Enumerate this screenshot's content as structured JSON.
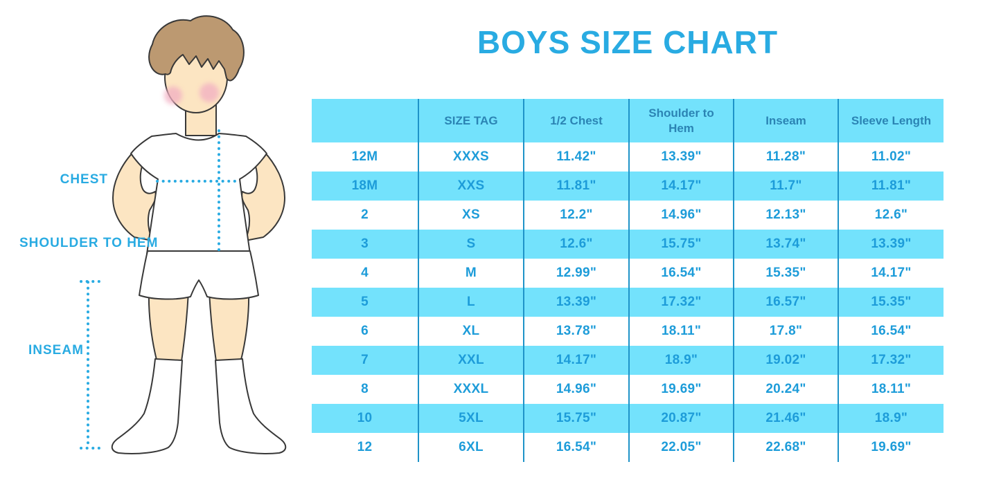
{
  "title": "BOYS SIZE CHART",
  "figure": {
    "labels": {
      "chest": "CHEST",
      "shoulder_to_hem": "SHOULDER TO HEM",
      "inseam": "INSEAM"
    }
  },
  "table": {
    "columns": [
      "",
      "SIZE TAG",
      "1/2 Chest",
      "Shoulder to Hem",
      "Inseam",
      "Sleeve Length"
    ],
    "rows": [
      [
        "12M",
        "XXXS",
        "11.42\"",
        "13.39\"",
        "11.28\"",
        "11.02\""
      ],
      [
        "18M",
        "XXS",
        "11.81\"",
        "14.17\"",
        "11.7\"",
        "11.81\""
      ],
      [
        "2",
        "XS",
        "12.2\"",
        "14.96\"",
        "12.13\"",
        "12.6\""
      ],
      [
        "3",
        "S",
        "12.6\"",
        "15.75\"",
        "13.74\"",
        "13.39\""
      ],
      [
        "4",
        "M",
        "12.99\"",
        "16.54\"",
        "15.35\"",
        "14.17\""
      ],
      [
        "5",
        "L",
        "13.39\"",
        "17.32\"",
        "16.57\"",
        "15.35\""
      ],
      [
        "6",
        "XL",
        "13.78\"",
        "18.11\"",
        "17.8\"",
        "16.54\""
      ],
      [
        "7",
        "XXL",
        "14.17\"",
        "18.9\"",
        "19.02\"",
        "17.32\""
      ],
      [
        "8",
        "XXXL",
        "14.96\"",
        "19.69\"",
        "20.24\"",
        "18.11\""
      ],
      [
        "10",
        "5XL",
        "15.75\"",
        "20.87\"",
        "21.46\"",
        "18.9\""
      ],
      [
        "12",
        "6XL",
        "16.54\"",
        "22.05\"",
        "22.68\"",
        "19.69\""
      ]
    ]
  },
  "colors": {
    "accent": "#29ABE2",
    "cyan": "#73E2FC",
    "line": "#1E93C8",
    "header_text": "#2B84B4",
    "cell_text": "#1D9CD9",
    "hair": "#BC9971",
    "skin": "#FCE5C2",
    "blush": "#F2AFC2",
    "outline": "#383838"
  }
}
